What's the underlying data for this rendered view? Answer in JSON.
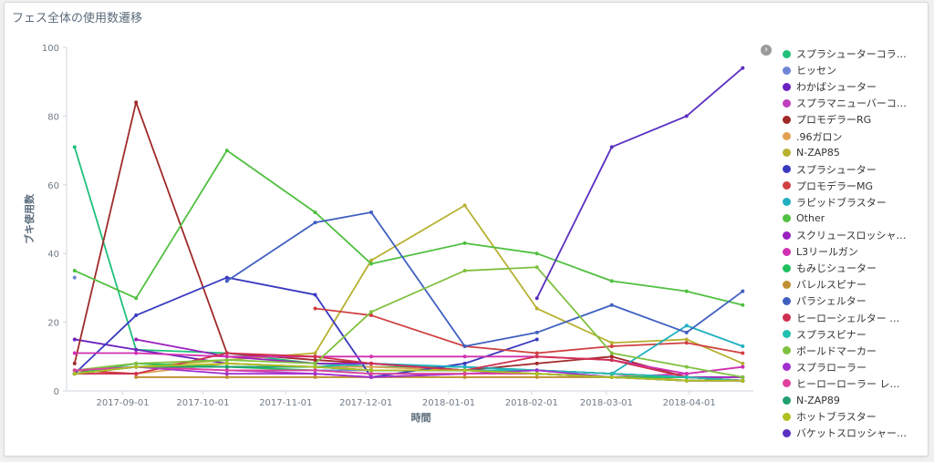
{
  "title": "フェス全体の使用数遷移",
  "chart_data": {
    "type": "line",
    "xlabel": "時間",
    "ylabel": "ブキ使用数",
    "ylim": [
      0,
      100
    ],
    "yticks": [
      0,
      20,
      40,
      60,
      80,
      100
    ],
    "xrange": [
      "2017-08-11",
      "2018-04-25"
    ],
    "xticks": [
      "2017-09-01",
      "2017-10-01",
      "2017-11-01",
      "2017-12-01",
      "2018-01-01",
      "2018-02-01",
      "2018-03-01",
      "2018-04-01"
    ],
    "x": [
      "2017-08-14",
      "2017-09-06",
      "2017-10-10",
      "2017-11-12",
      "2017-12-03",
      "2018-01-07",
      "2018-02-03",
      "2018-03-03",
      "2018-03-31",
      "2018-04-21"
    ],
    "grid": false,
    "legend_position": "right",
    "series": [
      {
        "name": "スプラシューターコラ…",
        "color": "#1fc07a",
        "values": [
          71,
          12,
          11,
          8,
          7,
          7,
          6,
          5,
          4,
          3
        ]
      },
      {
        "name": "ヒッセン",
        "color": "#6f86d6",
        "values": [
          33,
          null,
          6,
          6,
          6,
          6,
          6,
          5,
          4,
          3
        ]
      },
      {
        "name": "わかばシューター",
        "color": "#6a22c0",
        "values": [
          15,
          12,
          8,
          7,
          6,
          6,
          5,
          4,
          4,
          3
        ]
      },
      {
        "name": "スプラマニューバーコ…",
        "color": "#c03fc0",
        "values": [
          5,
          7,
          6,
          5,
          4,
          5,
          5,
          4,
          5,
          7
        ]
      },
      {
        "name": "プロモデラーRG",
        "color": "#a02a2a",
        "values": [
          8,
          84,
          11,
          9,
          8,
          6,
          8,
          10,
          4,
          3
        ]
      },
      {
        "name": ".96ガロン",
        "color": "#e0a050",
        "values": [
          5,
          5,
          8,
          7,
          7,
          6,
          6,
          5,
          3,
          3
        ]
      },
      {
        "name": "N-ZAP85",
        "color": "#b8b030",
        "values": [
          5,
          7,
          9,
          11,
          38,
          54,
          24,
          14,
          15,
          8
        ]
      },
      {
        "name": "スプラシューター",
        "color": "#3a3ac0",
        "values": [
          5,
          22,
          33,
          28,
          4,
          8,
          15,
          null,
          null,
          null
        ]
      },
      {
        "name": "プロモデラーMG",
        "color": "#d04040",
        "values": [
          6,
          5,
          null,
          24,
          22,
          13,
          11,
          13,
          14,
          11
        ]
      },
      {
        "name": "ラピッドブラスター",
        "color": "#20b0c0",
        "values": [
          5,
          7,
          7,
          7,
          8,
          7,
          6,
          5,
          19,
          13
        ]
      },
      {
        "name": "Other",
        "color": "#50c040",
        "values": [
          35,
          27,
          70,
          52,
          37,
          43,
          40,
          32,
          29,
          25
        ]
      },
      {
        "name": "スクリュースロッシャ…",
        "color": "#9a20c0",
        "values": [
          null,
          15,
          10,
          8,
          8,
          6,
          6,
          5,
          4,
          4
        ]
      },
      {
        "name": "L3リールガン",
        "color": "#d030b0",
        "values": [
          11,
          11,
          10,
          10,
          10,
          10,
          10,
          9,
          5,
          7
        ]
      },
      {
        "name": "もみじシューター",
        "color": "#20c060",
        "values": [
          5,
          8,
          7,
          6,
          5,
          5,
          5,
          4,
          4,
          3
        ]
      },
      {
        "name": "バレルスピナー",
        "color": "#c09030",
        "values": [
          null,
          4,
          4,
          4,
          4,
          4,
          4,
          4,
          3,
          3
        ]
      },
      {
        "name": "パラシェルター",
        "color": "#4060c0",
        "values": [
          null,
          null,
          32,
          49,
          52,
          13,
          17,
          25,
          17,
          29
        ]
      },
      {
        "name": "ヒーローシェルター …",
        "color": "#d03050",
        "values": [
          5,
          5,
          11,
          10,
          8,
          6,
          10,
          9,
          4,
          3
        ]
      },
      {
        "name": "スプラスピナー",
        "color": "#20c0b0",
        "values": [
          6,
          7,
          7,
          7,
          6,
          6,
          6,
          5,
          4,
          3
        ]
      },
      {
        "name": "ボールドマーカー",
        "color": "#80c040",
        "values": [
          6,
          8,
          9,
          8,
          23,
          35,
          36,
          11,
          7,
          4
        ]
      },
      {
        "name": "スプラローラー",
        "color": "#a030d0",
        "values": [
          5,
          7,
          5,
          5,
          4,
          5,
          6,
          4,
          3,
          3
        ]
      },
      {
        "name": "ヒーローローラー レ…",
        "color": "#e040a0",
        "values": [
          6,
          7,
          6,
          6,
          5,
          5,
          5,
          4,
          3,
          3
        ]
      },
      {
        "name": "N-ZAP89",
        "color": "#20a070",
        "values": [
          5,
          7,
          7,
          7,
          6,
          6,
          5,
          4,
          3,
          3
        ]
      },
      {
        "name": "ホットブラスター",
        "color": "#b0c020",
        "values": [
          5,
          7,
          8,
          7,
          6,
          6,
          5,
          4,
          3,
          3
        ]
      },
      {
        "name": "バケットスロッシャー…",
        "color": "#5a30c0",
        "values": [
          null,
          null,
          null,
          null,
          null,
          null,
          27,
          71,
          80,
          94
        ]
      }
    ]
  },
  "legend": {
    "toggle_icon": "chevron-right-icon"
  }
}
